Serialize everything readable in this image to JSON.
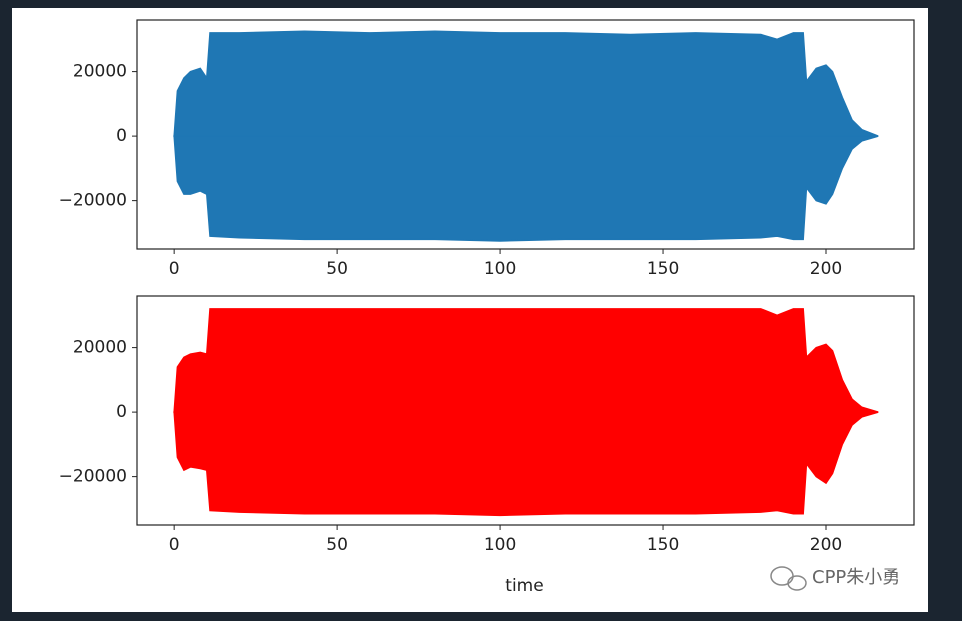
{
  "chart_data": [
    {
      "type": "area",
      "x": [
        0,
        1,
        3,
        5,
        8,
        10,
        11,
        20,
        40,
        60,
        80,
        100,
        120,
        140,
        160,
        180,
        185,
        190,
        193,
        194,
        197,
        200,
        202,
        205,
        208,
        211,
        216
      ],
      "series": [
        {
          "color": "#1f77b4",
          "values": [
            0,
            14000,
            18000,
            20000,
            21000,
            18000,
            32000,
            32000,
            32500,
            32000,
            32500,
            32000,
            32000,
            31500,
            32000,
            31500,
            30000,
            32000,
            32000,
            17000,
            21000,
            22000,
            20000,
            12000,
            5000,
            2000,
            0
          ]
        },
        {
          "color": "#1f77b4",
          "values": [
            0,
            -14000,
            -18000,
            -18000,
            -17000,
            -18000,
            -31000,
            -31500,
            -32000,
            -32000,
            -32000,
            -32500,
            -32000,
            -32000,
            -32000,
            -31500,
            -31000,
            -32000,
            -32000,
            -16000,
            -20000,
            -21000,
            -18000,
            -10000,
            -4000,
            -1500,
            0
          ]
        }
      ],
      "xlim": [
        -11.4,
        227
      ],
      "xticks": [
        0,
        50,
        100,
        150,
        200
      ],
      "ylim": [
        -35000,
        36000
      ],
      "yticks": [
        {
          "value": -20000,
          "label": "−20000"
        },
        0,
        20000
      ]
    },
    {
      "type": "area",
      "x": [
        0,
        1,
        3,
        5,
        8,
        10,
        11,
        20,
        40,
        60,
        80,
        100,
        120,
        140,
        160,
        180,
        185,
        190,
        193,
        194,
        197,
        200,
        202,
        205,
        208,
        211,
        216
      ],
      "series": [
        {
          "color": "#ff0000",
          "values": [
            0,
            14000,
            17000,
            18000,
            18500,
            18000,
            32000,
            32000,
            32000,
            32000,
            32000,
            32000,
            32000,
            32000,
            32000,
            32000,
            30000,
            32000,
            32000,
            17000,
            20000,
            21000,
            19000,
            10000,
            4000,
            1500,
            0
          ]
        },
        {
          "color": "#ff0000",
          "values": [
            0,
            -14000,
            -18000,
            -17000,
            -17500,
            -18000,
            -30500,
            -31000,
            -31500,
            -31500,
            -31500,
            -32000,
            -31500,
            -31500,
            -31500,
            -31000,
            -30500,
            -31500,
            -31500,
            -16000,
            -20000,
            -22000,
            -19000,
            -10000,
            -4000,
            -1500,
            0
          ]
        }
      ],
      "xlim": [
        -11.4,
        227
      ],
      "xticks": [
        0,
        50,
        100,
        150,
        200
      ],
      "ylim": [
        -35000,
        36000
      ],
      "yticks": [
        {
          "value": -20000,
          "label": "−20000"
        },
        0,
        20000
      ],
      "xlabel": "time"
    }
  ],
  "watermark": "CPP朱小勇"
}
